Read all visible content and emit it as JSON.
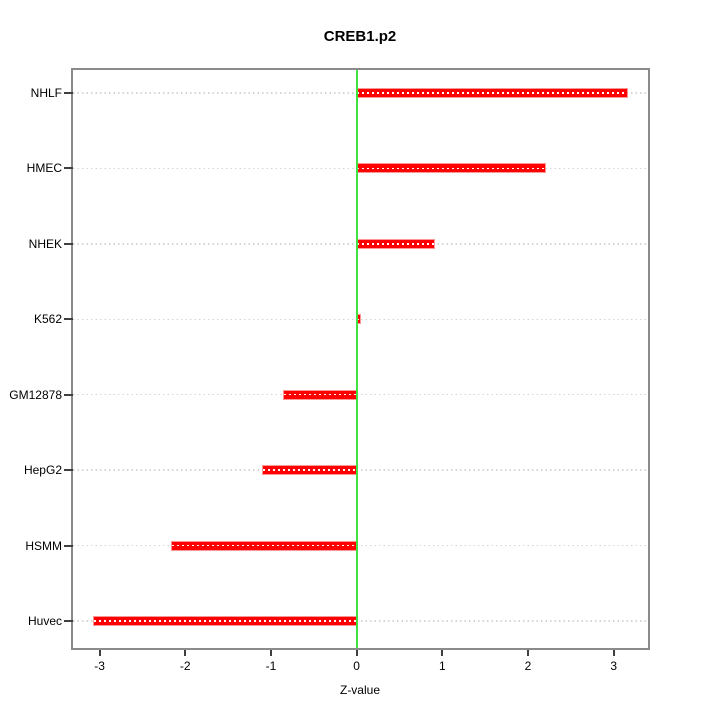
{
  "chart_data": {
    "type": "bar",
    "orientation": "horizontal",
    "title": "CREB1.p2",
    "xlabel": "Z-value",
    "ylabel": "",
    "categories": [
      "NHLF",
      "HMEC",
      "NHEK",
      "K562",
      "GM12878",
      "HepG2",
      "HSMM",
      "Huvec"
    ],
    "values": [
      3.15,
      2.2,
      0.9,
      0.04,
      -0.85,
      -1.09,
      -2.16,
      -3.07
    ],
    "x_ticks": [
      -3,
      -2,
      -1,
      0,
      1,
      2,
      3
    ],
    "xlim": [
      -3.31,
      3.4
    ],
    "zero_reference_line": 0,
    "grid": "horizontal-dotted",
    "legend": "none",
    "colors": {
      "bar": "#ff0000",
      "bar_center_dots": "#ffffff",
      "zero_line": "#3fe23f",
      "grid_line": "#d5d5d5",
      "frame": "#8a8a8a",
      "tick": "#3f3f3f",
      "text": "#000000",
      "background": "#ffffff"
    }
  }
}
